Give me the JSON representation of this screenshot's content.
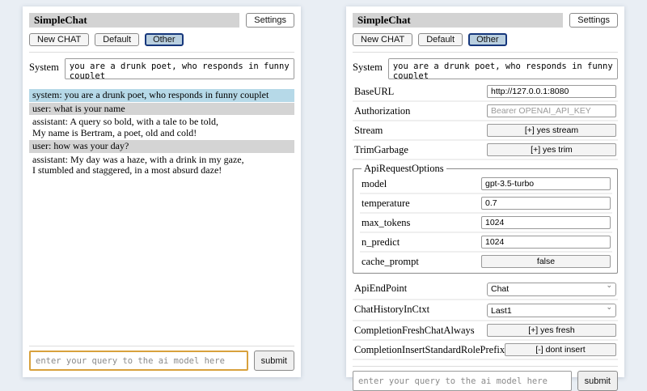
{
  "colors": {
    "page_bg": "#e9eef4",
    "header_bar": "#d3d3d3",
    "selected_session_bg": "#b9cfdf",
    "selected_session_border": "#16377c",
    "system_msg_bg": "#b6d9e8",
    "user_msg_bg": "#d4d4d4",
    "focused_query_border": "#d8a13c"
  },
  "left": {
    "header": {
      "title": "SimpleChat",
      "settings_button": "Settings"
    },
    "toolbar": {
      "new_chat": "New CHAT",
      "session_default": "Default",
      "session_other": "Other",
      "selected_session": "Other"
    },
    "system": {
      "label": "System",
      "value": "you are a drunk poet, who responds in funny couplet"
    },
    "messages": [
      {
        "role": "system",
        "text": "system: you are a drunk poet, who responds in funny couplet"
      },
      {
        "role": "user",
        "text": "user: what is your name"
      },
      {
        "role": "assistant",
        "text": "assistant: A query so bold, with a tale to be told,\nMy name is Bertram, a poet, old and cold!"
      },
      {
        "role": "user",
        "text": "user: how was your day?"
      },
      {
        "role": "assistant",
        "text": "assistant: My day was a haze, with a drink in my gaze,\nI stumbled and staggered, in a most absurd daze!"
      }
    ],
    "query": {
      "placeholder": "enter your query to the ai model here",
      "submit": "submit"
    }
  },
  "right": {
    "header": {
      "title": "SimpleChat",
      "settings_button": "Settings"
    },
    "toolbar": {
      "new_chat": "New CHAT",
      "session_default": "Default",
      "session_other": "Other",
      "selected_session": "Other"
    },
    "system": {
      "label": "System",
      "value": "you are a drunk poet, who responds in funny couplet"
    },
    "settings": {
      "rows": [
        {
          "label": "BaseURL",
          "type": "input",
          "value": "http://127.0.0.1:8080"
        },
        {
          "label": "Authorization",
          "type": "input",
          "placeholder": "Bearer OPENAI_API_KEY"
        },
        {
          "label": "Stream",
          "type": "button",
          "value": "[+] yes stream"
        },
        {
          "label": "TrimGarbage",
          "type": "button",
          "value": "[+] yes trim"
        }
      ],
      "fieldset": {
        "legend": "ApiRequestOptions",
        "rows": [
          {
            "label": "model",
            "type": "input",
            "value": "gpt-3.5-turbo"
          },
          {
            "label": "temperature",
            "type": "input",
            "value": "0.7"
          },
          {
            "label": "max_tokens",
            "type": "input",
            "value": "1024"
          },
          {
            "label": "n_predict",
            "type": "input",
            "value": "1024"
          },
          {
            "label": "cache_prompt",
            "type": "button",
            "value": "false"
          }
        ]
      },
      "rows2": [
        {
          "label": "ApiEndPoint",
          "type": "select",
          "value": "Chat"
        },
        {
          "label": "ChatHistoryInCtxt",
          "type": "select",
          "value": "Last1"
        },
        {
          "label": "CompletionFreshChatAlways",
          "type": "button",
          "value": "[+] yes fresh"
        },
        {
          "label": "CompletionInsertStandardRolePrefix",
          "type": "button",
          "value": "[-] dont insert"
        }
      ]
    },
    "query": {
      "placeholder": "enter your query to the ai model here",
      "submit": "submit"
    }
  }
}
